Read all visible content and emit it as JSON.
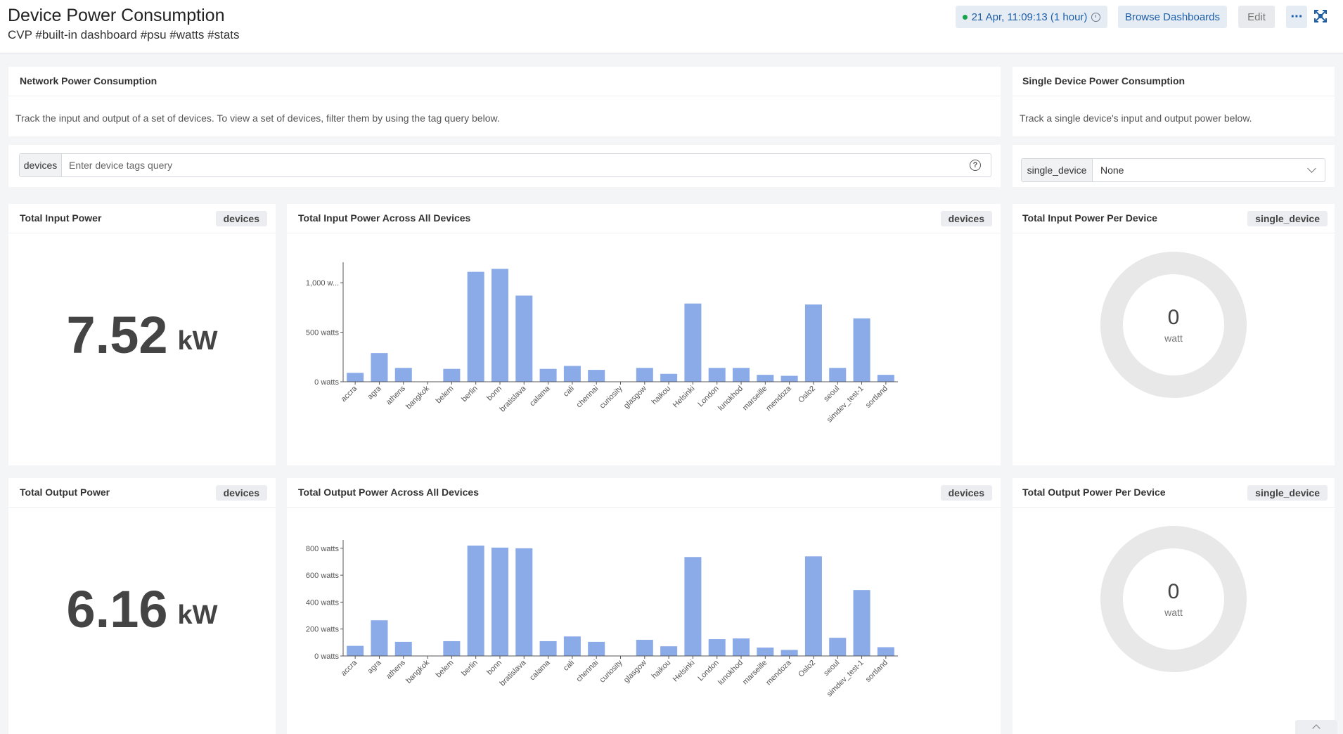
{
  "header": {
    "title": "Device Power Consumption",
    "subtitle": "CVP #built-in dashboard #psu #watts #stats",
    "time_range": "21 Apr, 11:09:13 (1 hour)",
    "browse_label": "Browse Dashboards",
    "edit_label": "Edit",
    "more_label": "···"
  },
  "network_card": {
    "title": "Network Power Consumption",
    "description": "Track the input and output of a set of devices. To view a set of devices, filter them by using the tag query below."
  },
  "single_card": {
    "title": "Single Device Power Consumption",
    "description": "Track a single device's input and output power below."
  },
  "query": {
    "label": "devices",
    "placeholder": "Enter device tags query",
    "help": "?"
  },
  "single_select": {
    "label": "single_device",
    "value": "None"
  },
  "tags": {
    "devices": "devices",
    "single_device": "single_device"
  },
  "total_input": {
    "title": "Total Input Power",
    "value": "7.52",
    "unit": "kW"
  },
  "total_output": {
    "title": "Total Output Power",
    "value": "6.16",
    "unit": "kW"
  },
  "input_chart_title": "Total Input Power Across All Devices",
  "output_chart_title": "Total Output Power Across All Devices",
  "input_per_device": {
    "title": "Total Input Power Per Device",
    "value": "0",
    "unit": "watt"
  },
  "output_per_device": {
    "title": "Total Output Power Per Device",
    "value": "0",
    "unit": "watt"
  },
  "colors": {
    "bar": "#8aaae8",
    "accent": "#1f5fa8",
    "donut_ring": "#e8e8e8"
  },
  "chart_data": [
    {
      "type": "bar",
      "title": "Total Input Power Across All Devices",
      "categories": [
        "accra",
        "agra",
        "athens",
        "bangkok",
        "belem",
        "berlin",
        "bonn",
        "bratislava",
        "calama",
        "cali",
        "chennai",
        "curiosity",
        "glasgow",
        "haikou",
        "Helsinki",
        "London",
        "lunokhod",
        "marseille",
        "mendoza",
        "Oslo2",
        "seoul",
        "simdev_test-1",
        "sortland"
      ],
      "values": [
        90,
        290,
        140,
        0,
        130,
        1110,
        1140,
        870,
        130,
        160,
        120,
        0,
        140,
        80,
        790,
        140,
        140,
        70,
        60,
        780,
        140,
        640,
        70
      ],
      "ylim": [
        0,
        1150
      ],
      "yticks": [
        "0 watts",
        "500 watts",
        "1,000 w..."
      ],
      "ytick_values": [
        0,
        500,
        1000
      ]
    },
    {
      "type": "bar",
      "title": "Total Output Power Across All Devices",
      "categories": [
        "accra",
        "agra",
        "athens",
        "bangkok",
        "belem",
        "berlin",
        "bonn",
        "bratislava",
        "calama",
        "cali",
        "chennai",
        "curiosity",
        "glasgow",
        "haikou",
        "Helsinki",
        "London",
        "lunokhod",
        "marseille",
        "mendoza",
        "Oslo2",
        "seoul",
        "simdev_test-1",
        "sortland"
      ],
      "values": [
        75,
        265,
        105,
        0,
        110,
        820,
        805,
        800,
        110,
        145,
        105,
        0,
        120,
        72,
        735,
        125,
        130,
        62,
        45,
        740,
        135,
        490,
        65
      ],
      "ylim": [
        0,
        820
      ],
      "yticks": [
        "0 watts",
        "200 watts",
        "400 watts",
        "600 watts",
        "800 watts"
      ],
      "ytick_values": [
        0,
        200,
        400,
        600,
        800
      ]
    }
  ]
}
